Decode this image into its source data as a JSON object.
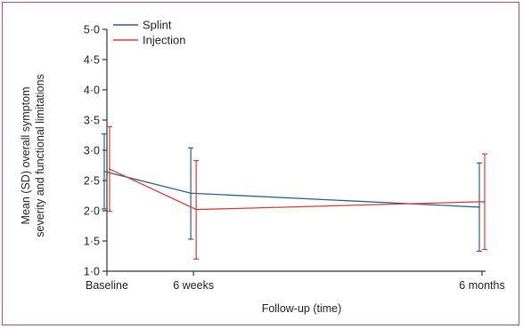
{
  "chart_data": {
    "type": "line",
    "title": "",
    "xlabel": "Follow-up (time)",
    "ylabel_lines": [
      "Mean (SD) overall symptom",
      "severity and functional limitations"
    ],
    "categories": [
      "Baseline",
      "6 weeks",
      "6 months"
    ],
    "x": [
      0,
      6,
      26
    ],
    "xlim": [
      0,
      26
    ],
    "ylim": [
      1.0,
      5.0
    ],
    "yticks": [
      1.0,
      1.5,
      2.0,
      2.5,
      3.0,
      3.5,
      4.0,
      4.5,
      5.0
    ],
    "ytick_labels": [
      "1·0",
      "1·5",
      "2·0",
      "2·5",
      "3·0",
      "3·5",
      "4·0",
      "4·5",
      "5·0"
    ],
    "legend_position": "top-left",
    "series": [
      {
        "name": "Splint",
        "color": "#2a5f93",
        "values": [
          2.65,
          2.29,
          2.06
        ],
        "lower": [
          2.03,
          1.53,
          1.33
        ],
        "upper": [
          3.27,
          3.04,
          2.79
        ]
      },
      {
        "name": "Injection",
        "color": "#e03b32",
        "values": [
          2.69,
          2.02,
          2.15
        ],
        "lower": [
          1.99,
          1.2,
          1.36
        ],
        "upper": [
          3.39,
          2.83,
          2.94
        ]
      }
    ]
  }
}
